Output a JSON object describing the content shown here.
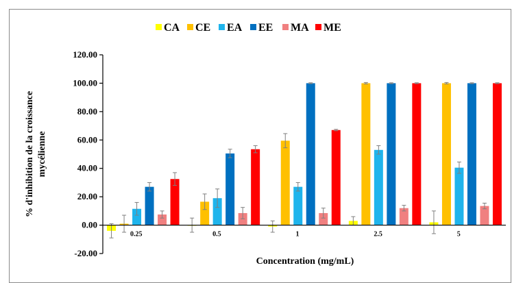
{
  "chart_data": {
    "type": "bar",
    "xlabel": "Concentration (mg/mL)",
    "ylabel": [
      "% d'inhibition de la croissance",
      "mycélienne"
    ],
    "ylim": [
      -20,
      120
    ],
    "yticks": [
      "-20.00",
      "0.00",
      "20.00",
      "40.00",
      "60.00",
      "80.00",
      "100.00",
      "120.00"
    ],
    "ytick_values": [
      -20,
      0,
      20,
      40,
      60,
      80,
      100,
      120
    ],
    "categories": [
      "0.25",
      "0.5",
      "1",
      "2.5",
      "5"
    ],
    "legend_position": "top",
    "grid": false,
    "series": [
      {
        "name": "CA",
        "color": "#ffff00",
        "values": [
          -4,
          0,
          -1,
          3,
          2
        ],
        "errors": [
          5,
          5,
          4,
          3,
          8
        ]
      },
      {
        "name": "CE",
        "color": "#ffc000",
        "values": [
          1,
          16.5,
          59.5,
          100,
          100
        ],
        "errors": [
          6,
          5.5,
          5,
          0.5,
          0.5
        ]
      },
      {
        "name": "EA",
        "color": "#1fb4ec",
        "values": [
          11.5,
          19,
          27,
          53,
          40.5
        ],
        "errors": [
          4.5,
          6.5,
          3,
          3,
          4
        ]
      },
      {
        "name": "EE",
        "color": "#0070c0",
        "values": [
          27,
          50.5,
          100,
          100,
          100
        ],
        "errors": [
          3,
          3,
          0.3,
          0.3,
          0.3
        ]
      },
      {
        "name": "MA",
        "color": "#f08080",
        "values": [
          7.5,
          8.5,
          8.5,
          12,
          13.5
        ],
        "errors": [
          2.5,
          4,
          3.5,
          2,
          2
        ]
      },
      {
        "name": "ME",
        "color": "#ff0000",
        "values": [
          32.5,
          53.5,
          67,
          100,
          100
        ],
        "errors": [
          4.5,
          2.5,
          0.5,
          0.3,
          0.3
        ]
      }
    ]
  }
}
